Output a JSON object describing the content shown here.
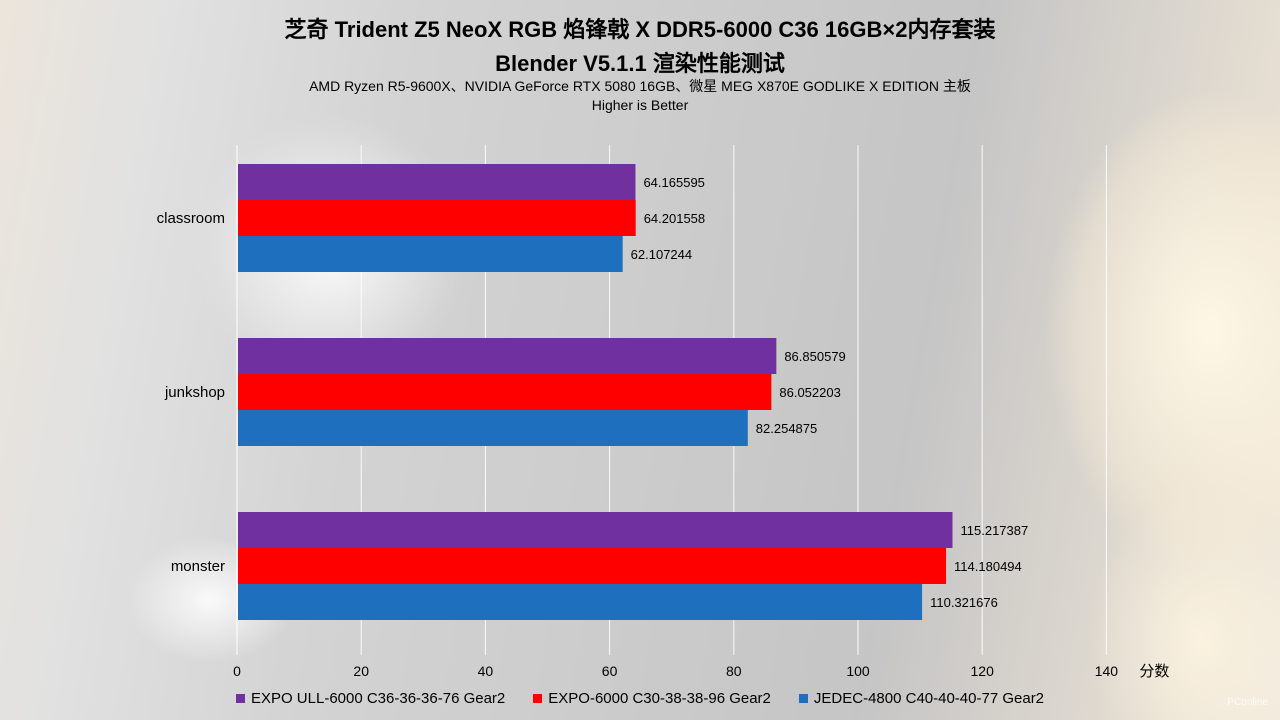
{
  "chart_data": {
    "type": "bar",
    "orientation": "horizontal",
    "title": "芝奇 Trident Z5 NeoX RGB 焰锋戟 X DDR5-6000 C36 16GB×2内存套装",
    "subtitle": "Blender V5.1.1 渲染性能测试",
    "note_line1": "AMD Ryzen R5-9600X、NVIDIA GeForce RTX 5080 16GB、微星 MEG X870E GODLIKE X EDITION 主板",
    "note_line2": "Higher is Better",
    "categories": [
      "classroom",
      "junkshop",
      "monster"
    ],
    "series": [
      {
        "name": "EXPO ULL-6000 C36-36-36-76 Gear2",
        "color": "#7030a0",
        "values": [
          64.165595,
          86.850579,
          115.217387
        ],
        "labels": [
          "64.165595",
          "86.850579",
          "115.217387"
        ]
      },
      {
        "name": "EXPO-6000 C30-38-38-96 Gear2",
        "color": "#ff0000",
        "values": [
          64.201558,
          86.052203,
          114.180494
        ],
        "labels": [
          "64.201558",
          "86.052203",
          "114.180494"
        ]
      },
      {
        "name": "JEDEC-4800 C40-40-40-77 Gear2",
        "color": "#1f6fbf",
        "values": [
          62.107244,
          82.254875,
          110.321676
        ],
        "labels": [
          "62.107244",
          "82.254875",
          "110.321676"
        ]
      }
    ],
    "xlabel": "分数",
    "xlim": [
      0,
      140
    ],
    "xticks": [
      0,
      20,
      40,
      60,
      80,
      100,
      120,
      140
    ],
    "grid": true,
    "legend_position": "bottom"
  },
  "watermark": "PConline"
}
